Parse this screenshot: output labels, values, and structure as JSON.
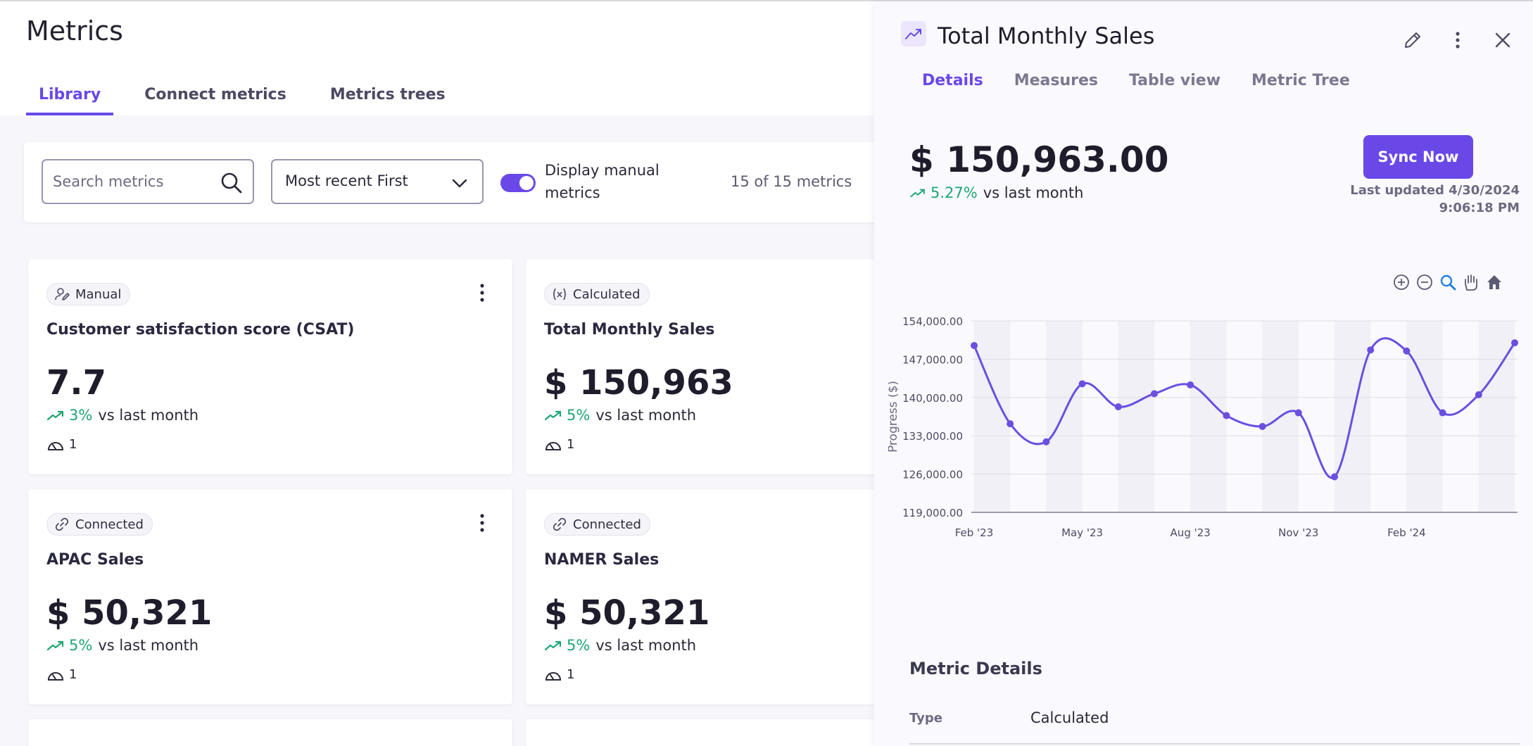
{
  "page": {
    "title": "Metrics"
  },
  "tabs": [
    {
      "label": "Library",
      "active": true
    },
    {
      "label": "Connect metrics",
      "active": false
    },
    {
      "label": "Metrics trees",
      "active": false
    }
  ],
  "toolbar": {
    "search_placeholder": "Search metrics",
    "sort_selected": "Most recent First",
    "toggle_label": "Display manual metrics",
    "toggle_on": true,
    "count": "15 of 15 metrics"
  },
  "cards": [
    {
      "badge": "Manual",
      "badge_icon": "manual-icon",
      "title": "Customer satisfaction score (CSAT)",
      "value": "7.7",
      "trend_pct": "3%",
      "trend_text": "vs last month",
      "footer_count": "1"
    },
    {
      "badge": "Calculated",
      "badge_icon": "formula-icon",
      "title": "Total Monthly Sales",
      "value": "$ 150,963",
      "trend_pct": "5%",
      "trend_text": "vs last month",
      "footer_count": "1"
    },
    {
      "badge": "Connected",
      "badge_icon": "link-icon",
      "title": "APAC Sales",
      "value": "$ 50,321",
      "trend_pct": "5%",
      "trend_text": "vs last month",
      "footer_count": "1"
    },
    {
      "badge": "Connected",
      "badge_icon": "link-icon",
      "title": "NAMER Sales",
      "value": "$ 50,321",
      "trend_pct": "5%",
      "trend_text": "vs last month",
      "footer_count": "1"
    }
  ],
  "detail": {
    "title": "Total Monthly Sales",
    "tabs": [
      {
        "label": "Details",
        "active": true
      },
      {
        "label": "Measures",
        "active": false
      },
      {
        "label": "Table view",
        "active": false
      },
      {
        "label": "Metric Tree",
        "active": false
      }
    ],
    "value": "$ 150,963.00",
    "trend_pct": "5.27%",
    "trend_text": "vs last month",
    "sync_label": "Sync Now",
    "updated_line1": "Last updated 4/30/2024",
    "updated_line2": "9:06:18 PM",
    "section_title": "Metric Details",
    "type_label": "Type",
    "type_value": "Calculated"
  },
  "colors": {
    "accent": "#6a48e8",
    "positive": "#1ea672",
    "line": "#6a4fe0"
  },
  "icons": [
    "search-icon",
    "chevron-down-icon",
    "kebab-icon",
    "trend-up-icon",
    "gauge-icon",
    "edit-icon",
    "close-icon",
    "zoom-in-icon",
    "zoom-out-icon",
    "zoom-select-icon",
    "pan-icon",
    "home-icon"
  ],
  "chart_data": {
    "type": "line",
    "ylabel": "Progress ($)",
    "xlabel": "",
    "ylim": [
      119000,
      154000
    ],
    "y_ticks": [
      "119,000.00",
      "126,000.00",
      "133,000.00",
      "140,000.00",
      "147,000.00",
      "154,000.00"
    ],
    "x_tick_labels": [
      "Feb '23",
      "May '23",
      "Aug '23",
      "Nov '23",
      "Feb '24"
    ],
    "x_tick_index": [
      0,
      3,
      6,
      9,
      12
    ],
    "grid": true,
    "series": [
      {
        "values": [
          149500,
          135200,
          131900,
          142500,
          138300,
          140700,
          142300,
          136700,
          134700,
          137200,
          125500,
          148700,
          148500,
          137200,
          140500,
          150000
        ]
      }
    ]
  }
}
